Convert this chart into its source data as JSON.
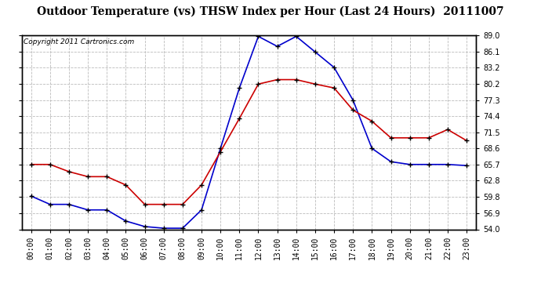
{
  "title": "Outdoor Temperature (vs) THSW Index per Hour (Last 24 Hours)  20111007",
  "copyright": "Copyright 2011 Cartronics.com",
  "hours": [
    "00:00",
    "01:00",
    "02:00",
    "03:00",
    "04:00",
    "05:00",
    "06:00",
    "07:00",
    "08:00",
    "09:00",
    "10:00",
    "11:00",
    "12:00",
    "13:00",
    "14:00",
    "15:00",
    "16:00",
    "17:00",
    "18:00",
    "19:00",
    "20:00",
    "21:00",
    "22:00",
    "23:00"
  ],
  "temp": [
    65.7,
    65.7,
    64.4,
    63.5,
    63.5,
    62.0,
    58.5,
    58.5,
    58.5,
    62.0,
    68.0,
    74.0,
    80.2,
    81.0,
    81.0,
    80.2,
    79.5,
    75.5,
    73.5,
    70.5,
    70.5,
    70.5,
    72.0,
    70.0
  ],
  "thsw": [
    60.0,
    58.5,
    58.5,
    57.5,
    57.5,
    55.5,
    54.5,
    54.2,
    54.2,
    57.5,
    68.6,
    79.5,
    88.8,
    87.0,
    88.8,
    86.0,
    83.2,
    77.3,
    68.6,
    66.2,
    65.7,
    65.7,
    65.7,
    65.5
  ],
  "ylim": [
    54.0,
    89.0
  ],
  "yticks": [
    54.0,
    56.9,
    59.8,
    62.8,
    65.7,
    68.6,
    71.5,
    74.4,
    77.3,
    80.2,
    83.2,
    86.1,
    89.0
  ],
  "temp_color": "#cc0000",
  "thsw_color": "#0000cc",
  "bg_color": "#ffffff",
  "grid_color": "#bbbbbb",
  "title_fontsize": 10,
  "copyright_fontsize": 6.5,
  "tick_fontsize": 7
}
